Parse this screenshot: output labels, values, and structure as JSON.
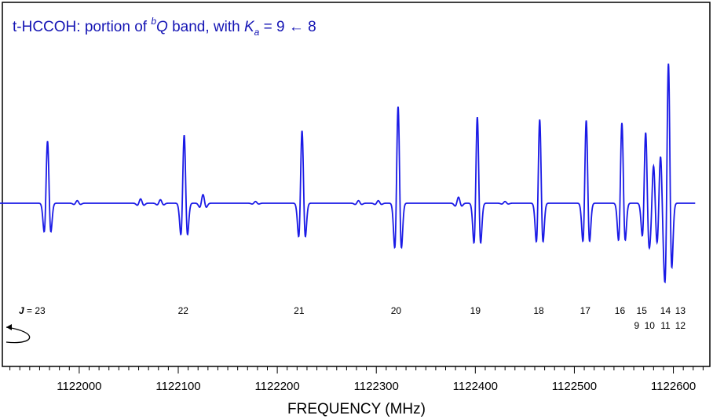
{
  "chart_data": {
    "type": "line",
    "title_main": "t-HCCOH: portion of ",
    "title_sup": "b",
    "title_q": "Q",
    "title_mid": " band, with ",
    "title_k": "K",
    "title_sub": "a",
    "title_end": " = 9 ← 8",
    "xlabel": "FREQUENCY (MHz)",
    "ylabel": "",
    "xlim": [
      1121920,
      1122640
    ],
    "xticks": [
      1122000,
      1122100,
      1122200,
      1122300,
      1122400,
      1122500,
      1122600
    ],
    "x_minor_step": 10,
    "line_color": "#1a1ae6",
    "title_color": "#1414b4",
    "j_prefix": "J",
    "j_eq": " = 23",
    "j_labels_row1": [
      {
        "text": "22",
        "x": 1122105
      },
      {
        "text": "21",
        "x": 1122222
      },
      {
        "text": "20",
        "x": 1122320
      },
      {
        "text": "19",
        "x": 1122400
      },
      {
        "text": "18",
        "x": 1122464
      },
      {
        "text": "17",
        "x": 1122511
      },
      {
        "text": "16",
        "x": 1122546
      },
      {
        "text": "15",
        "x": 1122568
      },
      {
        "text": "14",
        "x": 1122592
      },
      {
        "text": "13",
        "x": 1122607
      }
    ],
    "j_labels_row2": [
      {
        "text": "9",
        "x": 1122563
      },
      {
        "text": "10",
        "x": 1122576
      },
      {
        "text": "11",
        "x": 1122592
      },
      {
        "text": "12",
        "x": 1122607
      }
    ],
    "j23_x": 1121966,
    "peaks": [
      {
        "x": 1121968,
        "h": 0.72
      },
      {
        "x": 1122106,
        "h": 0.79
      },
      {
        "x": 1122225,
        "h": 0.84
      },
      {
        "x": 1122322,
        "h": 1.12
      },
      {
        "x": 1122402,
        "h": 1.0
      },
      {
        "x": 1122465,
        "h": 0.97
      },
      {
        "x": 1122512,
        "h": 0.96
      },
      {
        "x": 1122548,
        "h": 0.93
      },
      {
        "x": 1122572,
        "h": 0.82
      },
      {
        "x": 1122580,
        "h": 0.44
      },
      {
        "x": 1122587,
        "h": 0.55
      },
      {
        "x": 1122595,
        "h": 1.62
      }
    ],
    "small_features": [
      {
        "x": 1121998,
        "h": 0.03
      },
      {
        "x": 1122062,
        "h": 0.05
      },
      {
        "x": 1122082,
        "h": 0.04
      },
      {
        "x": 1122125,
        "h": 0.1
      },
      {
        "x": 1122178,
        "h": 0.02
      },
      {
        "x": 1122282,
        "h": 0.03
      },
      {
        "x": 1122302,
        "h": 0.03
      },
      {
        "x": 1122383,
        "h": 0.07
      },
      {
        "x": 1122430,
        "h": 0.02
      }
    ]
  }
}
